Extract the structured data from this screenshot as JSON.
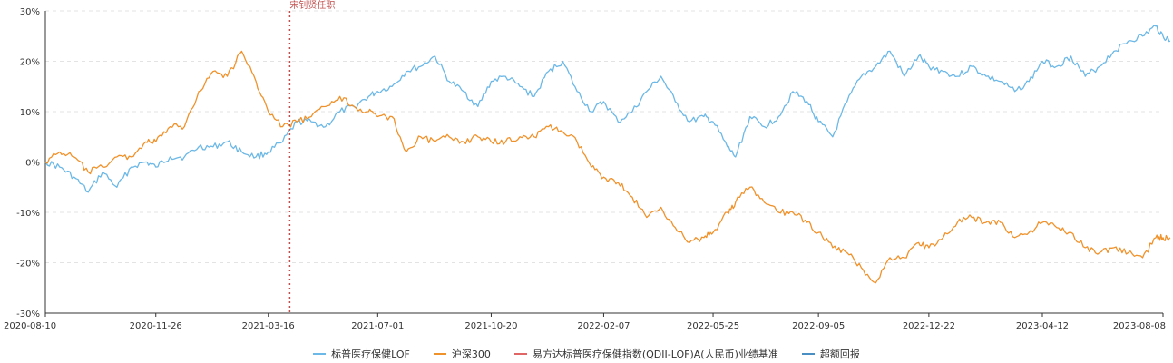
{
  "chart_data": {
    "type": "line",
    "x_ticks": [
      "2020-08-10",
      "2020-11-26",
      "2021-03-16",
      "2021-07-01",
      "2021-10-20",
      "2022-02-07",
      "2022-05-25",
      "2022-09-05",
      "2022-12-22",
      "2023-04-12",
      "2023-08-08"
    ],
    "y_ticks": [
      "30%",
      "20%",
      "10%",
      "0%",
      "-10%",
      "-20%",
      "-30%"
    ],
    "ylim": [
      -30,
      30
    ],
    "grid": "horizontal dashed",
    "legend_position": "bottom-center",
    "annotation": {
      "label": "宋钊贤任职",
      "x": "2021-04-06",
      "color": "#c0504d"
    },
    "series": [
      {
        "name": "标普医疗保健LOF",
        "color": "#6cb8e6",
        "points": [
          [
            "2020-08-10",
            0
          ],
          [
            "2020-08-24",
            -1
          ],
          [
            "2020-09-07",
            -3
          ],
          [
            "2020-09-21",
            -6
          ],
          [
            "2020-10-05",
            -2
          ],
          [
            "2020-10-19",
            -5
          ],
          [
            "2020-11-02",
            -1
          ],
          [
            "2020-11-16",
            0
          ],
          [
            "2020-11-26",
            -1
          ],
          [
            "2020-12-10",
            1
          ],
          [
            "2020-12-24",
            1
          ],
          [
            "2021-01-07",
            3
          ],
          [
            "2021-01-21",
            3
          ],
          [
            "2021-02-04",
            4
          ],
          [
            "2021-02-18",
            2
          ],
          [
            "2021-03-04",
            1
          ],
          [
            "2021-03-16",
            2
          ],
          [
            "2021-03-30",
            4
          ],
          [
            "2021-04-13",
            8
          ],
          [
            "2021-04-27",
            8
          ],
          [
            "2021-05-11",
            7
          ],
          [
            "2021-05-25",
            10
          ],
          [
            "2021-06-08",
            11
          ],
          [
            "2021-06-22",
            13
          ],
          [
            "2021-07-01",
            14
          ],
          [
            "2021-07-15",
            15
          ],
          [
            "2021-07-29",
            18
          ],
          [
            "2021-08-12",
            19
          ],
          [
            "2021-08-26",
            21
          ],
          [
            "2021-09-09",
            16
          ],
          [
            "2021-09-23",
            14
          ],
          [
            "2021-10-07",
            11
          ],
          [
            "2021-10-20",
            16
          ],
          [
            "2021-11-03",
            17
          ],
          [
            "2021-11-17",
            15
          ],
          [
            "2021-12-01",
            13
          ],
          [
            "2021-12-15",
            18
          ],
          [
            "2021-12-29",
            20
          ],
          [
            "2022-01-12",
            14
          ],
          [
            "2022-01-26",
            10
          ],
          [
            "2022-02-07",
            12
          ],
          [
            "2022-02-21",
            8
          ],
          [
            "2022-03-07",
            10
          ],
          [
            "2022-03-21",
            14
          ],
          [
            "2022-04-04",
            17
          ],
          [
            "2022-04-18",
            12
          ],
          [
            "2022-05-02",
            8
          ],
          [
            "2022-05-16",
            9
          ],
          [
            "2022-05-25",
            8
          ],
          [
            "2022-06-08",
            3
          ],
          [
            "2022-06-16",
            1
          ],
          [
            "2022-06-30",
            9
          ],
          [
            "2022-07-14",
            7
          ],
          [
            "2022-07-28",
            9
          ],
          [
            "2022-08-11",
            14
          ],
          [
            "2022-08-25",
            12
          ],
          [
            "2022-09-05",
            8
          ],
          [
            "2022-09-19",
            5
          ],
          [
            "2022-10-03",
            12
          ],
          [
            "2022-10-17",
            17
          ],
          [
            "2022-10-31",
            19
          ],
          [
            "2022-11-14",
            22
          ],
          [
            "2022-11-28",
            17
          ],
          [
            "2022-12-12",
            21
          ],
          [
            "2022-12-22",
            19
          ],
          [
            "2023-01-05",
            18
          ],
          [
            "2023-01-19",
            17
          ],
          [
            "2023-02-02",
            19
          ],
          [
            "2023-02-16",
            17
          ],
          [
            "2023-03-02",
            16
          ],
          [
            "2023-03-16",
            14
          ],
          [
            "2023-03-30",
            16
          ],
          [
            "2023-04-12",
            20
          ],
          [
            "2023-04-26",
            19
          ],
          [
            "2023-05-10",
            21
          ],
          [
            "2023-05-24",
            17
          ],
          [
            "2023-06-07",
            19
          ],
          [
            "2023-06-21",
            22
          ],
          [
            "2023-07-05",
            24
          ],
          [
            "2023-07-19",
            25
          ],
          [
            "2023-08-01",
            27
          ],
          [
            "2023-08-08",
            25
          ],
          [
            "2023-08-15",
            24
          ]
        ]
      },
      {
        "name": "沪深300",
        "color": "#f0922b",
        "points": [
          [
            "2020-08-10",
            0
          ],
          [
            "2020-08-24",
            2
          ],
          [
            "2020-09-07",
            1
          ],
          [
            "2020-09-21",
            -2
          ],
          [
            "2020-10-05",
            -1
          ],
          [
            "2020-10-19",
            1
          ],
          [
            "2020-11-02",
            1
          ],
          [
            "2020-11-16",
            4
          ],
          [
            "2020-11-26",
            4
          ],
          [
            "2020-12-10",
            7
          ],
          [
            "2020-12-24",
            7
          ],
          [
            "2021-01-07",
            14
          ],
          [
            "2021-01-21",
            18
          ],
          [
            "2021-02-04",
            17
          ],
          [
            "2021-02-18",
            22
          ],
          [
            "2021-03-04",
            16
          ],
          [
            "2021-03-16",
            10
          ],
          [
            "2021-03-30",
            7
          ],
          [
            "2021-04-13",
            8
          ],
          [
            "2021-04-27",
            9
          ],
          [
            "2021-05-11",
            11
          ],
          [
            "2021-05-25",
            13
          ],
          [
            "2021-06-08",
            11
          ],
          [
            "2021-06-22",
            10
          ],
          [
            "2021-07-01",
            9
          ],
          [
            "2021-07-15",
            9
          ],
          [
            "2021-07-29",
            2
          ],
          [
            "2021-08-12",
            5
          ],
          [
            "2021-08-26",
            4
          ],
          [
            "2021-09-09",
            5
          ],
          [
            "2021-09-23",
            4
          ],
          [
            "2021-10-07",
            5
          ],
          [
            "2021-10-20",
            4
          ],
          [
            "2021-11-03",
            4
          ],
          [
            "2021-11-17",
            5
          ],
          [
            "2021-12-01",
            5
          ],
          [
            "2021-12-15",
            7
          ],
          [
            "2021-12-29",
            6
          ],
          [
            "2022-01-12",
            4
          ],
          [
            "2022-01-26",
            -1
          ],
          [
            "2022-02-07",
            -3
          ],
          [
            "2022-02-21",
            -4
          ],
          [
            "2022-03-07",
            -7
          ],
          [
            "2022-03-21",
            -11
          ],
          [
            "2022-04-04",
            -9
          ],
          [
            "2022-04-18",
            -13
          ],
          [
            "2022-05-02",
            -16
          ],
          [
            "2022-05-16",
            -15
          ],
          [
            "2022-05-25",
            -14
          ],
          [
            "2022-06-08",
            -10
          ],
          [
            "2022-06-16",
            -8
          ],
          [
            "2022-06-30",
            -5
          ],
          [
            "2022-07-14",
            -8
          ],
          [
            "2022-07-28",
            -10
          ],
          [
            "2022-08-11",
            -10
          ],
          [
            "2022-08-25",
            -12
          ],
          [
            "2022-09-05",
            -14
          ],
          [
            "2022-09-19",
            -17
          ],
          [
            "2022-10-03",
            -18
          ],
          [
            "2022-10-17",
            -21
          ],
          [
            "2022-10-31",
            -24
          ],
          [
            "2022-11-14",
            -19
          ],
          [
            "2022-11-28",
            -19
          ],
          [
            "2022-12-12",
            -16
          ],
          [
            "2022-12-22",
            -17
          ],
          [
            "2023-01-05",
            -15
          ],
          [
            "2023-01-19",
            -12
          ],
          [
            "2023-02-02",
            -11
          ],
          [
            "2023-02-16",
            -12
          ],
          [
            "2023-03-02",
            -12
          ],
          [
            "2023-03-16",
            -15
          ],
          [
            "2023-03-30",
            -14
          ],
          [
            "2023-04-12",
            -12
          ],
          [
            "2023-04-26",
            -13
          ],
          [
            "2023-05-10",
            -14
          ],
          [
            "2023-05-24",
            -17
          ],
          [
            "2023-06-07",
            -18
          ],
          [
            "2023-06-21",
            -17
          ],
          [
            "2023-07-05",
            -18
          ],
          [
            "2023-07-19",
            -19
          ],
          [
            "2023-08-01",
            -15
          ],
          [
            "2023-08-08",
            -15
          ],
          [
            "2023-08-15",
            -15
          ]
        ]
      }
    ],
    "legend": [
      {
        "name": "标普医疗保健LOF",
        "color": "#6cb8e6"
      },
      {
        "name": "沪深300",
        "color": "#f0922b"
      },
      {
        "name": "易方达标普医疗保健指数(QDII-LOF)A(人民币)业绩基准",
        "color": "#e06666"
      },
      {
        "name": "超额回报",
        "color": "#4a8fc4"
      }
    ]
  }
}
